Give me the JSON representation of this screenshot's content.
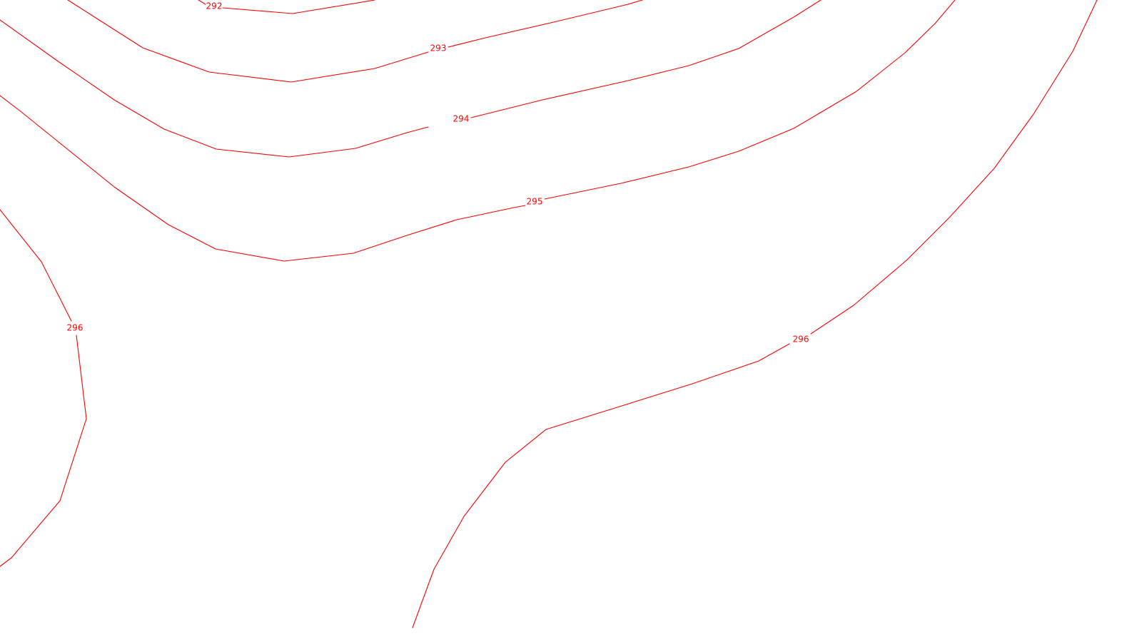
{
  "map": {
    "line_color": "#ff0000",
    "background": "#ffffff",
    "contour_labels": [
      {
        "id": "label-292",
        "text": "292"
      },
      {
        "id": "label-293",
        "text": "293"
      },
      {
        "id": "label-294",
        "text": "294"
      },
      {
        "id": "label-295",
        "text": "295"
      },
      {
        "id": "label-296-left",
        "text": "296"
      },
      {
        "id": "label-296-right",
        "text": "296"
      }
    ]
  }
}
